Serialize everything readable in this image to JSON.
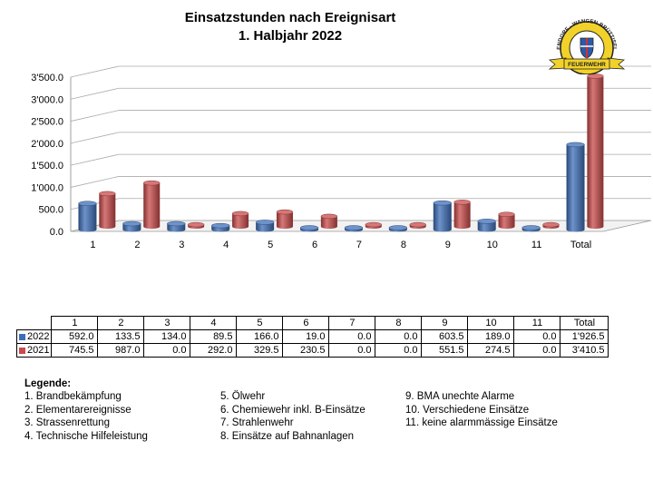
{
  "title_line1": "Einsatzstunden nach Ereignisart",
  "title_line2": "1. Halbjahr 2022",
  "logo": {
    "icon": "fire-brigade-crest",
    "text_top": "DÜBENDORF - WANGEN-BRÜTTISELLEN",
    "text_band": "FEUERWEHR"
  },
  "chart_data": {
    "type": "bar",
    "categories": [
      "1",
      "2",
      "3",
      "4",
      "5",
      "6",
      "7",
      "8",
      "9",
      "10",
      "11",
      "Total"
    ],
    "series": [
      {
        "name": "2022",
        "color": "#3d6fb8",
        "values": [
          592.0,
          133.5,
          134.0,
          89.5,
          166.0,
          19.0,
          0.0,
          0.0,
          603.5,
          189.0,
          0.0,
          1926.5
        ]
      },
      {
        "name": "2021",
        "color": "#c94a4a",
        "values": [
          745.5,
          987.0,
          0.0,
          292.0,
          329.5,
          230.5,
          0.0,
          0.0,
          551.5,
          274.5,
          0.0,
          3410.5
        ]
      }
    ],
    "y_ticks": [
      "0.0",
      "500.0",
      "1'000.0",
      "1'500.0",
      "2'000.0",
      "2'500.0",
      "3'000.0",
      "3'500.0"
    ],
    "ylim": [
      0,
      3500
    ],
    "grid": true,
    "three_d": true
  },
  "table": {
    "headers": [
      "1",
      "2",
      "3",
      "4",
      "5",
      "6",
      "7",
      "8",
      "9",
      "10",
      "11",
      "Total"
    ],
    "rows": [
      {
        "label": "2022",
        "color": "#3d6fb8",
        "values": [
          "592.0",
          "133.5",
          "134.0",
          "89.5",
          "166.0",
          "19.0",
          "0.0",
          "0.0",
          "603.5",
          "189.0",
          "0.0",
          "1'926.5"
        ]
      },
      {
        "label": "2021",
        "color": "#c94a4a",
        "values": [
          "745.5",
          "987.0",
          "0.0",
          "292.0",
          "329.5",
          "230.5",
          "0.0",
          "0.0",
          "551.5",
          "274.5",
          "0.0",
          "3'410.5"
        ]
      }
    ]
  },
  "legend": {
    "title": "Legende:",
    "col1": [
      "1.   Brandbekämpfung",
      "2.   Elementarereignisse",
      "3.   Strassenrettung",
      "4.   Technische Hilfeleistung"
    ],
    "col2": [
      "5. Ölwehr",
      "6. Chemiewehr inkl. B-Einsätze",
      "7. Strahlenwehr",
      "8. Einsätze auf Bahnanlagen"
    ],
    "col3": [
      "9. BMA unechte Alarme",
      "10. Verschiedene Einsätze",
      "11. keine alarmmässige Einsätze"
    ]
  }
}
